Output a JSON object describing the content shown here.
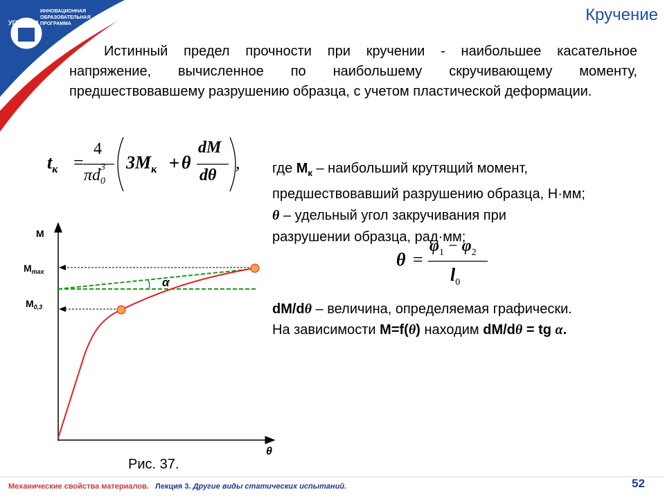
{
  "logo": {
    "line_1": "ИННОВАЦИОННАЯ",
    "line_2": "ОБРАЗОВАТЕЛЬНАЯ",
    "line_3": "ПРОГРАММА",
    "university": "УГТУ-УПИ"
  },
  "title": "Кручение",
  "paragraph": "Истинный предел прочности при кручении - наибольшее касательное напряжение, вычисленное по наибольшему скручивающему моменту, предшествовавшему разрушению образца, с учетом пластической деформации.",
  "formula_1": {
    "lhs": "t",
    "lhs_sub": "к",
    "eq": "=",
    "num": "4",
    "den": "πd",
    "den_sub": "0",
    "den_sup": "3",
    "term": "3M",
    "term_sub": "к",
    "plus": "+",
    "theta": "θ",
    "frac_num": "dM",
    "frac_den": "dθ",
    "comma": ","
  },
  "definitions": {
    "l1_a": "где ",
    "l1_m": "M",
    "l1_sub": "к",
    "l1_b": " – наибольший крутящий момент,",
    "l2": "предшествовавший разрушению образца, Н·мм;",
    "l3_theta": "θ",
    "l3_b": " – удельный угол закручивания при",
    "l4": "разрушении образца, рад·мм;"
  },
  "formula_2": {
    "lhs": "θ",
    "eq": "=",
    "num": "φ",
    "num_sub_1": "1",
    "minus": "−",
    "num_2": "φ",
    "num_sub_2": "2",
    "den": "l",
    "den_sub": "0"
  },
  "graphical": {
    "l1_a": "dM/d",
    "l1_theta": "θ",
    "l1_b": " – величина, определяемая графически.",
    "l2_a": "На зависимости ",
    "l2_b": "M=f(",
    "l2_theta": "θ",
    "l2_c": ")",
    "l2_d": " находим ",
    "l2_e": "dM/d",
    "l2_theta2": "θ",
    "l2_f": " = tg ",
    "l2_alpha": "α",
    "l2_g": "."
  },
  "diagram": {
    "y_axis": "M",
    "m_max": "M",
    "m_max_sub": "max",
    "m_03": "M",
    "m_03_sub": "0,3",
    "angle": "α",
    "x_axis": "θ",
    "caption": "Рис. 37."
  },
  "footer": {
    "course": "Механические свойства материалов.",
    "lecture": "Лекция 3.",
    "topic": "Другие виды статических испытаний.",
    "page": "52"
  }
}
